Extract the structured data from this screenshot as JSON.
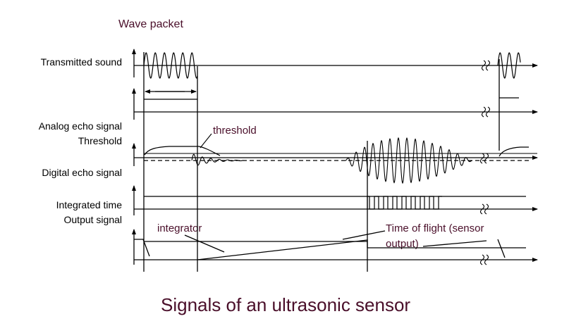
{
  "title": "Signals of an ultrasonic sensor",
  "header_label": "Wave packet",
  "row_labels": {
    "transmitted": "Transmitted sound",
    "analog": "Analog echo signal",
    "threshold": "Threshold",
    "digital": "Digital echo signal",
    "integrated": "Integrated time",
    "output": "Output signal"
  },
  "annotations": {
    "threshold": "threshold",
    "integrator": "integrator",
    "tof_line1": "Time of flight (sensor",
    "tof_line2": "output)"
  },
  "colors": {
    "text": "#000000",
    "annotation": "#4a0f2a",
    "line": "#000000"
  }
}
